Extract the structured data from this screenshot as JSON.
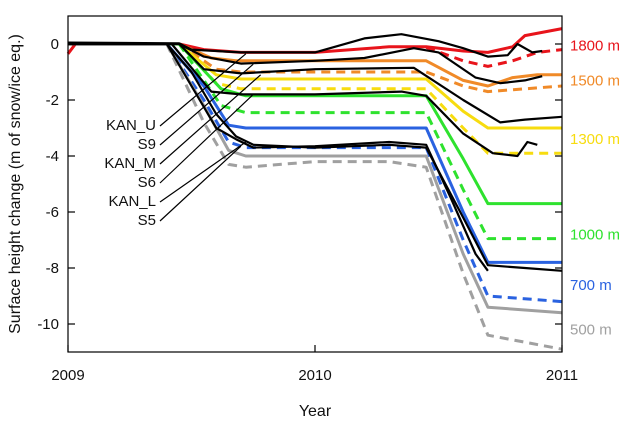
{
  "chart_data": {
    "type": "line",
    "xlabel": "Year",
    "ylabel": "Surface height change (m of snow/ice eq.)",
    "xlim": [
      2009.0,
      2011.0
    ],
    "ylim": [
      -11.0,
      1.0
    ],
    "x_ticks": [
      {
        "value": 2009,
        "label": "2009"
      },
      {
        "value": 2010,
        "label": "2010"
      },
      {
        "value": 2011,
        "label": "2011"
      }
    ],
    "y_ticks": [
      {
        "value": 0,
        "label": "0"
      },
      {
        "value": -2,
        "label": "-2"
      },
      {
        "value": -4,
        "label": "-4"
      },
      {
        "value": -6,
        "label": "-6"
      },
      {
        "value": -8,
        "label": "-8"
      },
      {
        "value": -10,
        "label": "-10"
      }
    ],
    "series": [
      {
        "name": "1800 m",
        "kind": "model",
        "style": "solid",
        "color": "#e8141b",
        "points": [
          [
            2009.0,
            -0.35
          ],
          [
            2009.03,
            0
          ],
          [
            2009.45,
            0
          ],
          [
            2009.55,
            -0.2
          ],
          [
            2009.7,
            -0.3
          ],
          [
            2010.0,
            -0.3
          ],
          [
            2010.3,
            -0.1
          ],
          [
            2010.45,
            -0.1
          ],
          [
            2010.6,
            -0.25
          ],
          [
            2010.7,
            -0.3
          ],
          [
            2010.8,
            -0.1
          ],
          [
            2010.85,
            0.3
          ],
          [
            2011.0,
            0.55
          ]
        ]
      },
      {
        "name": "1800 m",
        "kind": "model",
        "style": "dashed",
        "color": "#e8141b",
        "points": [
          [
            2010.45,
            -0.12
          ],
          [
            2010.6,
            -0.6
          ],
          [
            2010.7,
            -0.8
          ],
          [
            2010.8,
            -0.6
          ],
          [
            2010.9,
            -0.3
          ],
          [
            2011.0,
            -0.2
          ]
        ]
      },
      {
        "name": "1500 m",
        "kind": "model",
        "style": "solid",
        "color": "#f08a28",
        "points": [
          [
            2009.0,
            0
          ],
          [
            2009.45,
            0
          ],
          [
            2009.58,
            -0.5
          ],
          [
            2009.68,
            -0.6
          ],
          [
            2010.3,
            -0.6
          ],
          [
            2010.45,
            -0.6
          ],
          [
            2010.6,
            -1.3
          ],
          [
            2010.7,
            -1.5
          ],
          [
            2010.8,
            -1.2
          ],
          [
            2010.9,
            -1.1
          ],
          [
            2011.0,
            -1.1
          ]
        ]
      },
      {
        "name": "1500 m",
        "kind": "model",
        "style": "dashed",
        "color": "#f08a28",
        "points": [
          [
            2009.45,
            0
          ],
          [
            2009.6,
            -0.9
          ],
          [
            2009.7,
            -1.0
          ],
          [
            2010.45,
            -1.0
          ],
          [
            2010.6,
            -1.5
          ],
          [
            2010.7,
            -1.7
          ],
          [
            2011.0,
            -1.5
          ]
        ]
      },
      {
        "name": "1300 m",
        "kind": "model",
        "style": "solid",
        "color": "#f7dc0f",
        "points": [
          [
            2009.0,
            0
          ],
          [
            2009.45,
            0
          ],
          [
            2009.6,
            -1.1
          ],
          [
            2009.7,
            -1.25
          ],
          [
            2010.45,
            -1.25
          ],
          [
            2010.6,
            -2.4
          ],
          [
            2010.7,
            -3.0
          ],
          [
            2011.0,
            -3.0
          ]
        ]
      },
      {
        "name": "1300 m",
        "kind": "model",
        "style": "dashed",
        "color": "#f7dc0f",
        "points": [
          [
            2009.45,
            0
          ],
          [
            2009.6,
            -1.4
          ],
          [
            2009.7,
            -1.6
          ],
          [
            2010.45,
            -1.6
          ],
          [
            2010.6,
            -3.0
          ],
          [
            2010.7,
            -3.9
          ],
          [
            2011.0,
            -3.9
          ]
        ]
      },
      {
        "name": "1000 m",
        "kind": "model",
        "style": "solid",
        "color": "#2ee22e",
        "points": [
          [
            2009.0,
            0
          ],
          [
            2009.45,
            0
          ],
          [
            2009.62,
            -1.6
          ],
          [
            2009.72,
            -1.85
          ],
          [
            2010.45,
            -1.85
          ],
          [
            2010.6,
            -4.1
          ],
          [
            2010.7,
            -5.7
          ],
          [
            2011.0,
            -5.7
          ]
        ]
      },
      {
        "name": "1000 m",
        "kind": "model",
        "style": "dashed",
        "color": "#2ee22e",
        "points": [
          [
            2009.45,
            0
          ],
          [
            2009.62,
            -2.2
          ],
          [
            2009.72,
            -2.45
          ],
          [
            2010.45,
            -2.45
          ],
          [
            2010.6,
            -5.2
          ],
          [
            2010.7,
            -6.95
          ],
          [
            2011.0,
            -6.95
          ]
        ]
      },
      {
        "name": "700 m",
        "kind": "model",
        "style": "solid",
        "color": "#2a62e0",
        "points": [
          [
            2009.0,
            0
          ],
          [
            2009.4,
            0
          ],
          [
            2009.55,
            -1.5
          ],
          [
            2009.65,
            -2.9
          ],
          [
            2009.72,
            -3.0
          ],
          [
            2010.45,
            -3.0
          ],
          [
            2010.6,
            -6.0
          ],
          [
            2010.7,
            -7.8
          ],
          [
            2011.0,
            -7.8
          ]
        ]
      },
      {
        "name": "700 m",
        "kind": "model",
        "style": "dashed",
        "color": "#2a62e0",
        "points": [
          [
            2009.4,
            0
          ],
          [
            2009.55,
            -2.0
          ],
          [
            2009.65,
            -3.5
          ],
          [
            2009.72,
            -3.7
          ],
          [
            2010.45,
            -3.7
          ],
          [
            2010.6,
            -7.0
          ],
          [
            2010.7,
            -9.0
          ],
          [
            2011.0,
            -9.2
          ]
        ]
      },
      {
        "name": "500 m",
        "kind": "model",
        "style": "solid",
        "color": "#a0a0a0",
        "points": [
          [
            2009.0,
            0
          ],
          [
            2009.4,
            0
          ],
          [
            2009.55,
            -2.2
          ],
          [
            2009.65,
            -3.8
          ],
          [
            2009.72,
            -4.0
          ],
          [
            2010.45,
            -4.0
          ],
          [
            2010.6,
            -7.5
          ],
          [
            2010.7,
            -9.4
          ],
          [
            2011.0,
            -9.6
          ]
        ]
      },
      {
        "name": "500 m",
        "kind": "model",
        "style": "dashed",
        "color": "#a0a0a0",
        "points": [
          [
            2009.4,
            0
          ],
          [
            2009.55,
            -2.8
          ],
          [
            2009.65,
            -4.3
          ],
          [
            2009.72,
            -4.4
          ],
          [
            2010.0,
            -4.2
          ],
          [
            2010.3,
            -4.2
          ],
          [
            2010.45,
            -4.4
          ],
          [
            2010.6,
            -8.2
          ],
          [
            2010.7,
            -10.4
          ],
          [
            2011.0,
            -10.9
          ]
        ]
      },
      {
        "name": "KAN_U",
        "kind": "observed",
        "style": "solid",
        "color": "#000000",
        "points": [
          [
            2009.0,
            0.05
          ],
          [
            2009.45,
            0.02
          ],
          [
            2009.5,
            -0.2
          ],
          [
            2009.7,
            -0.3
          ],
          [
            2010.0,
            -0.3
          ],
          [
            2010.2,
            0.2
          ],
          [
            2010.35,
            0.35
          ],
          [
            2010.5,
            0.1
          ],
          [
            2010.6,
            -0.15
          ],
          [
            2010.7,
            -0.45
          ],
          [
            2010.78,
            -0.4
          ],
          [
            2010.82,
            0
          ],
          [
            2010.88,
            -0.3
          ],
          [
            2010.92,
            -0.25
          ]
        ]
      },
      {
        "name": "S9",
        "kind": "observed",
        "style": "solid",
        "color": "#000000",
        "points": [
          [
            2009.0,
            0
          ],
          [
            2009.45,
            0
          ],
          [
            2009.55,
            -0.45
          ],
          [
            2009.7,
            -0.7
          ],
          [
            2010.0,
            -0.6
          ],
          [
            2010.2,
            -0.5
          ],
          [
            2010.4,
            -0.15
          ],
          [
            2010.5,
            -0.3
          ],
          [
            2010.65,
            -1.2
          ],
          [
            2010.75,
            -1.4
          ],
          [
            2010.85,
            -1.3
          ],
          [
            2010.92,
            -1.15
          ]
        ]
      },
      {
        "name": "KAN_M",
        "kind": "observed",
        "style": "solid",
        "color": "#000000",
        "points": [
          [
            2009.0,
            0
          ],
          [
            2009.45,
            0
          ],
          [
            2009.55,
            -0.9
          ],
          [
            2009.7,
            -1.05
          ],
          [
            2010.0,
            -0.9
          ],
          [
            2010.4,
            -0.85
          ],
          [
            2010.6,
            -2.0
          ],
          [
            2010.75,
            -2.8
          ],
          [
            2010.85,
            -2.7
          ],
          [
            2011.0,
            -2.6
          ]
        ]
      },
      {
        "name": "S6",
        "kind": "observed",
        "style": "solid",
        "color": "#000000",
        "points": [
          [
            2009.0,
            0
          ],
          [
            2009.42,
            0
          ],
          [
            2009.58,
            -1.7
          ],
          [
            2009.7,
            -1.8
          ],
          [
            2010.0,
            -1.8
          ],
          [
            2010.35,
            -1.7
          ],
          [
            2010.45,
            -1.85
          ],
          [
            2010.6,
            -3.2
          ],
          [
            2010.72,
            -3.9
          ],
          [
            2010.82,
            -4.0
          ],
          [
            2010.86,
            -3.5
          ],
          [
            2010.9,
            -3.6
          ]
        ]
      },
      {
        "name": "KAN_L",
        "kind": "observed",
        "style": "solid",
        "color": "#000000",
        "points": [
          [
            2009.0,
            0
          ],
          [
            2009.4,
            0
          ],
          [
            2009.5,
            -1.0
          ],
          [
            2009.6,
            -2.5
          ],
          [
            2009.68,
            -3.3
          ],
          [
            2009.75,
            -3.6
          ],
          [
            2010.0,
            -3.7
          ],
          [
            2010.3,
            -3.6
          ],
          [
            2010.45,
            -3.7
          ],
          [
            2010.6,
            -6.2
          ],
          [
            2010.7,
            -7.9
          ],
          [
            2010.85,
            -8.0
          ],
          [
            2011.0,
            -8.1
          ]
        ]
      },
      {
        "name": "S5",
        "kind": "observed",
        "style": "solid",
        "color": "#000000",
        "points": [
          [
            2009.0,
            0
          ],
          [
            2009.4,
            0
          ],
          [
            2009.5,
            -1.5
          ],
          [
            2009.6,
            -3.0
          ],
          [
            2009.68,
            -3.4
          ],
          [
            2009.75,
            -3.7
          ],
          [
            2010.0,
            -3.65
          ],
          [
            2010.3,
            -3.5
          ],
          [
            2010.45,
            -3.6
          ],
          [
            2010.55,
            -5.5
          ],
          [
            2010.65,
            -7.5
          ],
          [
            2010.7,
            -8.1
          ]
        ]
      }
    ],
    "station_labels": [
      {
        "text": "KAN_U",
        "target_x": 2009.72,
        "target_y": -0.35
      },
      {
        "text": "S9",
        "target_x": 2009.75,
        "target_y": -0.72
      },
      {
        "text": "KAN_M",
        "target_x": 2009.78,
        "target_y": -1.1
      },
      {
        "text": "S6",
        "target_x": 2009.75,
        "target_y": -1.8
      },
      {
        "text": "KAN_L",
        "target_x": 2009.72,
        "target_y": -3.5
      },
      {
        "text": "S5",
        "target_x": 2009.7,
        "target_y": -3.65
      }
    ],
    "elevation_labels": [
      {
        "text": "1800 m",
        "y": -0.05,
        "color": "#e8141b"
      },
      {
        "text": "1500 m",
        "y": -1.3,
        "color": "#f08a28"
      },
      {
        "text": "1300 m",
        "y": -3.4,
        "color": "#f7dc0f"
      },
      {
        "text": "1000 m",
        "y": -6.8,
        "color": "#2ee22e"
      },
      {
        "text": "700 m",
        "y": -8.6,
        "color": "#2a62e0"
      },
      {
        "text": "500 m",
        "y": -10.2,
        "color": "#a0a0a0"
      }
    ],
    "legend": "none",
    "grid": false
  }
}
